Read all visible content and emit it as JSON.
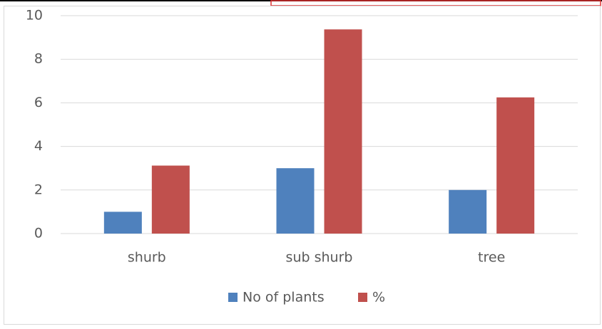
{
  "chart_data": {
    "type": "bar",
    "categories": [
      "shurb",
      "sub shurb",
      "tree"
    ],
    "series": [
      {
        "name": "No of plants",
        "color": "#4f81bd",
        "values": [
          1,
          3,
          2
        ]
      },
      {
        "name": "%",
        "color": "#c0504d",
        "values": [
          3.12,
          9.37,
          6.25
        ]
      }
    ],
    "ylim": [
      0,
      10
    ],
    "yticks": [
      0,
      2,
      4,
      6,
      8,
      10
    ],
    "grid": true,
    "legend": "bottom"
  }
}
